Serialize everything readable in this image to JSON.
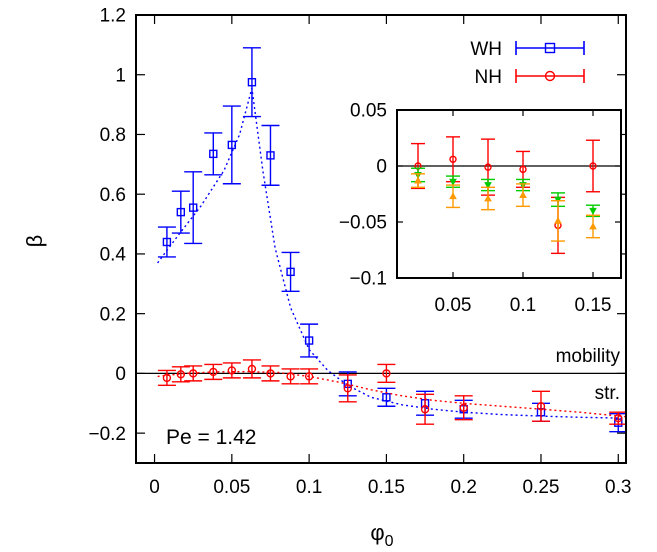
{
  "chart_data": [
    {
      "type": "scatter",
      "xlabel": "φ",
      "xlabel_sub": "0",
      "ylabel": "β",
      "xlim": [
        -0.012,
        0.305
      ],
      "ylim": [
        -0.3,
        1.2
      ],
      "xticks": [
        0,
        0.05,
        0.1,
        0.15,
        0.2,
        0.25,
        0.3
      ],
      "xtick_labels": [
        "0",
        "0.05",
        "0.1",
        "0.15",
        "0.2",
        "0.25",
        "0.3"
      ],
      "yticks": [
        -0.2,
        0,
        0.2,
        0.4,
        0.6,
        0.8,
        1,
        1.2
      ],
      "ytick_labels": [
        "−0.2",
        "0",
        "0.2",
        "0.4",
        "0.6",
        "0.8",
        "1",
        "1.2"
      ],
      "annotations": {
        "pe": "Pe = 1.42",
        "mobility": "mobility",
        "str": "str."
      },
      "legend": {
        "position": "top-right"
      },
      "series": [
        {
          "name": "WH",
          "color": "#0000ff",
          "marker": "square",
          "points": [
            {
              "x": 0.008,
              "y": 0.44,
              "err": 0.05
            },
            {
              "x": 0.017,
              "y": 0.54,
              "err": 0.07
            },
            {
              "x": 0.025,
              "y": 0.555,
              "err": 0.12
            },
            {
              "x": 0.038,
              "y": 0.735,
              "err": 0.07
            },
            {
              "x": 0.05,
              "y": 0.765,
              "err": 0.13
            },
            {
              "x": 0.063,
              "y": 0.975,
              "err": 0.115
            },
            {
              "x": 0.075,
              "y": 0.73,
              "err": 0.1
            },
            {
              "x": 0.088,
              "y": 0.34,
              "err": 0.065
            },
            {
              "x": 0.1,
              "y": 0.11,
              "err": 0.055
            },
            {
              "x": 0.125,
              "y": -0.035,
              "err": 0.04
            },
            {
              "x": 0.15,
              "y": -0.08,
              "err": 0.03
            },
            {
              "x": 0.175,
              "y": -0.1,
              "err": 0.04
            },
            {
              "x": 0.2,
              "y": -0.12,
              "err": 0.03
            },
            {
              "x": 0.25,
              "y": -0.13,
              "err": 0.03
            },
            {
              "x": 0.3,
              "y": -0.165,
              "err": 0.03
            }
          ],
          "fit": {
            "x": [
              0.002,
              0.015,
              0.03,
              0.045,
              0.055,
              0.063,
              0.07,
              0.078,
              0.088,
              0.1,
              0.112,
              0.125,
              0.14,
              0.16,
              0.18,
              0.2,
              0.225,
              0.25,
              0.275,
              0.305
            ],
            "y": [
              0.37,
              0.46,
              0.56,
              0.68,
              0.8,
              0.955,
              0.68,
              0.42,
              0.22,
              0.08,
              0.01,
              -0.04,
              -0.08,
              -0.105,
              -0.12,
              -0.13,
              -0.138,
              -0.143,
              -0.147,
              -0.15
            ]
          }
        },
        {
          "name": "NH",
          "color": "#ff0000",
          "marker": "circle",
          "points": [
            {
              "x": 0.008,
              "y": -0.015,
              "err": 0.025
            },
            {
              "x": 0.017,
              "y": -0.003,
              "err": 0.025
            },
            {
              "x": 0.025,
              "y": 0.0,
              "err": 0.025
            },
            {
              "x": 0.038,
              "y": 0.005,
              "err": 0.025
            },
            {
              "x": 0.05,
              "y": 0.01,
              "err": 0.025
            },
            {
              "x": 0.063,
              "y": 0.015,
              "err": 0.03
            },
            {
              "x": 0.075,
              "y": 0.0,
              "err": 0.025
            },
            {
              "x": 0.088,
              "y": -0.01,
              "err": 0.025
            },
            {
              "x": 0.1,
              "y": -0.01,
              "err": 0.025
            },
            {
              "x": 0.125,
              "y": -0.05,
              "err": 0.045
            },
            {
              "x": 0.15,
              "y": 0.0,
              "err": 0.03
            },
            {
              "x": 0.175,
              "y": -0.12,
              "err": 0.05
            },
            {
              "x": 0.2,
              "y": -0.115,
              "err": 0.04
            },
            {
              "x": 0.25,
              "y": -0.11,
              "err": 0.05
            },
            {
              "x": 0.3,
              "y": -0.15,
              "err": 0.02
            }
          ],
          "fit": {
            "x": [
              0.002,
              0.02,
              0.04,
              0.06,
              0.08,
              0.1,
              0.12,
              0.14,
              0.16,
              0.18,
              0.2,
              0.225,
              0.25,
              0.275,
              0.305
            ],
            "y": [
              -0.01,
              0.0,
              0.005,
              0.006,
              0.003,
              -0.01,
              -0.03,
              -0.055,
              -0.075,
              -0.09,
              -0.1,
              -0.11,
              -0.12,
              -0.13,
              -0.145
            ]
          }
        }
      ]
    },
    {
      "type": "scatter",
      "xlim": [
        0.01,
        0.17
      ],
      "ylim": [
        -0.1,
        0.05
      ],
      "xticks": [
        0.05,
        0.1,
        0.15
      ],
      "xtick_labels": [
        "0.05",
        "0.1",
        "0.15"
      ],
      "yticks": [
        -0.1,
        -0.05,
        0,
        0.05
      ],
      "ytick_labels": [
        "−0.1",
        "−0.05",
        "0",
        "0.05"
      ],
      "series": [
        {
          "color": "#ff0000",
          "marker": "circle",
          "points": [
            {
              "x": 0.025,
              "y": 0.0,
              "err": 0.02
            },
            {
              "x": 0.05,
              "y": 0.006,
              "err": 0.02
            },
            {
              "x": 0.075,
              "y": -0.001,
              "err": 0.025
            },
            {
              "x": 0.1,
              "y": -0.003,
              "err": 0.016
            },
            {
              "x": 0.125,
              "y": -0.053,
              "err": 0.025
            },
            {
              "x": 0.15,
              "y": 0.0,
              "err": 0.023
            }
          ]
        },
        {
          "color": "#00cc00",
          "marker": "triangle-down",
          "points": [
            {
              "x": 0.025,
              "y": -0.008,
              "err": 0.006
            },
            {
              "x": 0.05,
              "y": -0.014,
              "err": 0.005
            },
            {
              "x": 0.075,
              "y": -0.017,
              "err": 0.005
            },
            {
              "x": 0.1,
              "y": -0.017,
              "err": 0.005
            },
            {
              "x": 0.125,
              "y": -0.03,
              "err": 0.006
            },
            {
              "x": 0.15,
              "y": -0.04,
              "err": 0.005
            }
          ]
        },
        {
          "color": "#ff9900",
          "marker": "triangle-up",
          "points": [
            {
              "x": 0.025,
              "y": -0.013,
              "err": 0.006
            },
            {
              "x": 0.05,
              "y": -0.027,
              "err": 0.01
            },
            {
              "x": 0.075,
              "y": -0.029,
              "err": 0.01
            },
            {
              "x": 0.1,
              "y": -0.026,
              "err": 0.01
            },
            {
              "x": 0.125,
              "y": -0.049,
              "err": 0.018
            },
            {
              "x": 0.15,
              "y": -0.054,
              "err": 0.01
            }
          ]
        }
      ]
    }
  ]
}
